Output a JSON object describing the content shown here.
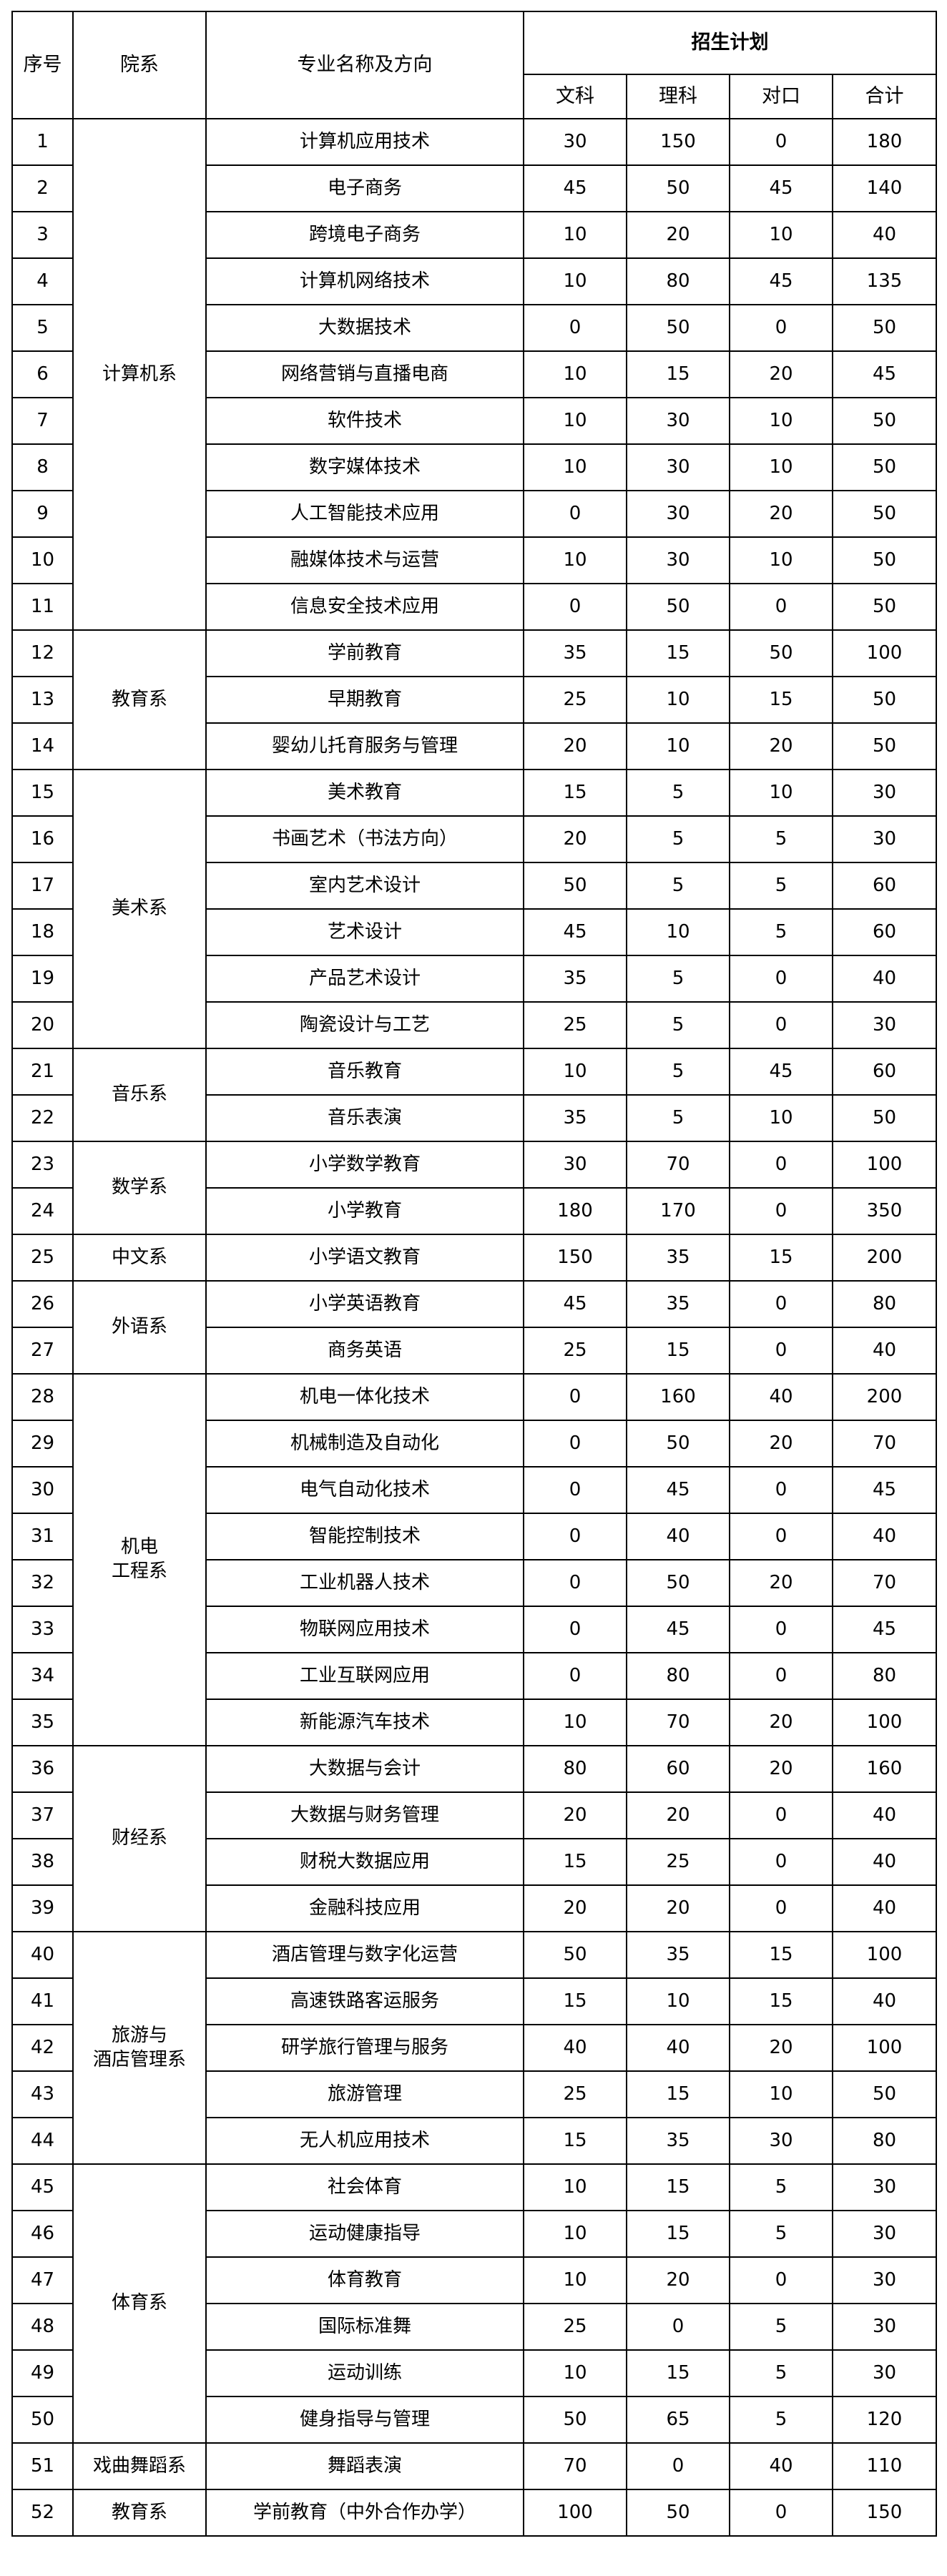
{
  "header": {
    "no": "序号",
    "department": "院系",
    "major": "专业名称及方向",
    "plan": "招生计划",
    "wenke": "文科",
    "like": "理科",
    "duikou": "对口",
    "total": "合计"
  },
  "departments": [
    {
      "name": "计算机系",
      "majors": [
        {
          "no": "1",
          "name": "计算机应用技术",
          "wenke": "30",
          "like": "150",
          "duikou": "0",
          "total": "180"
        },
        {
          "no": "2",
          "name": "电子商务",
          "wenke": "45",
          "like": "50",
          "duikou": "45",
          "total": "140"
        },
        {
          "no": "3",
          "name": "跨境电子商务",
          "wenke": "10",
          "like": "20",
          "duikou": "10",
          "total": "40"
        },
        {
          "no": "4",
          "name": "计算机网络技术",
          "wenke": "10",
          "like": "80",
          "duikou": "45",
          "total": "135"
        },
        {
          "no": "5",
          "name": "大数据技术",
          "wenke": "0",
          "like": "50",
          "duikou": "0",
          "total": "50"
        },
        {
          "no": "6",
          "name": "网络营销与直播电商",
          "wenke": "10",
          "like": "15",
          "duikou": "20",
          "total": "45"
        },
        {
          "no": "7",
          "name": "软件技术",
          "wenke": "10",
          "like": "30",
          "duikou": "10",
          "total": "50"
        },
        {
          "no": "8",
          "name": "数字媒体技术",
          "wenke": "10",
          "like": "30",
          "duikou": "10",
          "total": "50"
        },
        {
          "no": "9",
          "name": "人工智能技术应用",
          "wenke": "0",
          "like": "30",
          "duikou": "20",
          "total": "50"
        },
        {
          "no": "10",
          "name": "融媒体技术与运营",
          "wenke": "10",
          "like": "30",
          "duikou": "10",
          "total": "50"
        },
        {
          "no": "11",
          "name": "信息安全技术应用",
          "wenke": "0",
          "like": "50",
          "duikou": "0",
          "total": "50"
        }
      ]
    },
    {
      "name": "教育系",
      "majors": [
        {
          "no": "12",
          "name": "学前教育",
          "wenke": "35",
          "like": "15",
          "duikou": "50",
          "total": "100"
        },
        {
          "no": "13",
          "name": "早期教育",
          "wenke": "25",
          "like": "10",
          "duikou": "15",
          "total": "50"
        },
        {
          "no": "14",
          "name": "婴幼儿托育服务与管理",
          "wenke": "20",
          "like": "10",
          "duikou": "20",
          "total": "50"
        }
      ]
    },
    {
      "name": "美术系",
      "majors": [
        {
          "no": "15",
          "name": "美术教育",
          "wenke": "15",
          "like": "5",
          "duikou": "10",
          "total": "30"
        },
        {
          "no": "16",
          "name": "书画艺术（书法方向）",
          "wenke": "20",
          "like": "5",
          "duikou": "5",
          "total": "30"
        },
        {
          "no": "17",
          "name": "室内艺术设计",
          "wenke": "50",
          "like": "5",
          "duikou": "5",
          "total": "60"
        },
        {
          "no": "18",
          "name": "艺术设计",
          "wenke": "45",
          "like": "10",
          "duikou": "5",
          "total": "60"
        },
        {
          "no": "19",
          "name": "产品艺术设计",
          "wenke": "35",
          "like": "5",
          "duikou": "0",
          "total": "40"
        },
        {
          "no": "20",
          "name": "陶瓷设计与工艺",
          "wenke": "25",
          "like": "5",
          "duikou": "0",
          "total": "30"
        }
      ]
    },
    {
      "name": "音乐系",
      "majors": [
        {
          "no": "21",
          "name": "音乐教育",
          "wenke": "10",
          "like": "5",
          "duikou": "45",
          "total": "60"
        },
        {
          "no": "22",
          "name": "音乐表演",
          "wenke": "35",
          "like": "5",
          "duikou": "10",
          "total": "50"
        }
      ]
    },
    {
      "name": "数学系",
      "majors": [
        {
          "no": "23",
          "name": "小学数学教育",
          "wenke": "30",
          "like": "70",
          "duikou": "0",
          "total": "100"
        },
        {
          "no": "24",
          "name": "小学教育",
          "wenke": "180",
          "like": "170",
          "duikou": "0",
          "total": "350"
        }
      ]
    },
    {
      "name": "中文系",
      "majors": [
        {
          "no": "25",
          "name": "小学语文教育",
          "wenke": "150",
          "like": "35",
          "duikou": "15",
          "total": "200"
        }
      ]
    },
    {
      "name": "外语系",
      "majors": [
        {
          "no": "26",
          "name": "小学英语教育",
          "wenke": "45",
          "like": "35",
          "duikou": "0",
          "total": "80"
        },
        {
          "no": "27",
          "name": "商务英语",
          "wenke": "25",
          "like": "15",
          "duikou": "0",
          "total": "40"
        }
      ]
    },
    {
      "name": "机电\n工程系",
      "majors": [
        {
          "no": "28",
          "name": "机电一体化技术",
          "wenke": "0",
          "like": "160",
          "duikou": "40",
          "total": "200"
        },
        {
          "no": "29",
          "name": "机械制造及自动化",
          "wenke": "0",
          "like": "50",
          "duikou": "20",
          "total": "70"
        },
        {
          "no": "30",
          "name": "电气自动化技术",
          "wenke": "0",
          "like": "45",
          "duikou": "0",
          "total": "45"
        },
        {
          "no": "31",
          "name": "智能控制技术",
          "wenke": "0",
          "like": "40",
          "duikou": "0",
          "total": "40"
        },
        {
          "no": "32",
          "name": "工业机器人技术",
          "wenke": "0",
          "like": "50",
          "duikou": "20",
          "total": "70"
        },
        {
          "no": "33",
          "name": "物联网应用技术",
          "wenke": "0",
          "like": "45",
          "duikou": "0",
          "total": "45"
        },
        {
          "no": "34",
          "name": "工业互联网应用",
          "wenke": "0",
          "like": "80",
          "duikou": "0",
          "total": "80"
        },
        {
          "no": "35",
          "name": "新能源汽车技术",
          "wenke": "10",
          "like": "70",
          "duikou": "20",
          "total": "100"
        }
      ]
    },
    {
      "name": "财经系",
      "majors": [
        {
          "no": "36",
          "name": "大数据与会计",
          "wenke": "80",
          "like": "60",
          "duikou": "20",
          "total": "160"
        },
        {
          "no": "37",
          "name": "大数据与财务管理",
          "wenke": "20",
          "like": "20",
          "duikou": "0",
          "total": "40"
        },
        {
          "no": "38",
          "name": "财税大数据应用",
          "wenke": "15",
          "like": "25",
          "duikou": "0",
          "total": "40"
        },
        {
          "no": "39",
          "name": "金融科技应用",
          "wenke": "20",
          "like": "20",
          "duikou": "0",
          "total": "40"
        }
      ]
    },
    {
      "name": "旅游与\n酒店管理系",
      "majors": [
        {
          "no": "40",
          "name": "酒店管理与数字化运营",
          "wenke": "50",
          "like": "35",
          "duikou": "15",
          "total": "100"
        },
        {
          "no": "41",
          "name": "高速铁路客运服务",
          "wenke": "15",
          "like": "10",
          "duikou": "15",
          "total": "40"
        },
        {
          "no": "42",
          "name": "研学旅行管理与服务",
          "wenke": "40",
          "like": "40",
          "duikou": "20",
          "total": "100"
        },
        {
          "no": "43",
          "name": "旅游管理",
          "wenke": "25",
          "like": "15",
          "duikou": "10",
          "total": "50"
        },
        {
          "no": "44",
          "name": "无人机应用技术",
          "wenke": "15",
          "like": "35",
          "duikou": "30",
          "total": "80"
        }
      ]
    },
    {
      "name": "体育系",
      "majors": [
        {
          "no": "45",
          "name": "社会体育",
          "wenke": "10",
          "like": "15",
          "duikou": "5",
          "total": "30"
        },
        {
          "no": "46",
          "name": "运动健康指导",
          "wenke": "10",
          "like": "15",
          "duikou": "5",
          "total": "30"
        },
        {
          "no": "47",
          "name": "体育教育",
          "wenke": "10",
          "like": "20",
          "duikou": "0",
          "total": "30"
        },
        {
          "no": "48",
          "name": "国际标准舞",
          "wenke": "25",
          "like": "0",
          "duikou": "5",
          "total": "30"
        },
        {
          "no": "49",
          "name": "运动训练",
          "wenke": "10",
          "like": "15",
          "duikou": "5",
          "total": "30"
        },
        {
          "no": "50",
          "name": "健身指导与管理",
          "wenke": "50",
          "like": "65",
          "duikou": "5",
          "total": "120"
        }
      ]
    },
    {
      "name": "戏曲舞蹈系",
      "majors": [
        {
          "no": "51",
          "name": "舞蹈表演",
          "wenke": "70",
          "like": "0",
          "duikou": "40",
          "total": "110"
        }
      ]
    },
    {
      "name": "教育系",
      "majors": [
        {
          "no": "52",
          "name": "学前教育（中外合作办学）",
          "wenke": "100",
          "like": "50",
          "duikou": "0",
          "total": "150"
        }
      ]
    }
  ]
}
